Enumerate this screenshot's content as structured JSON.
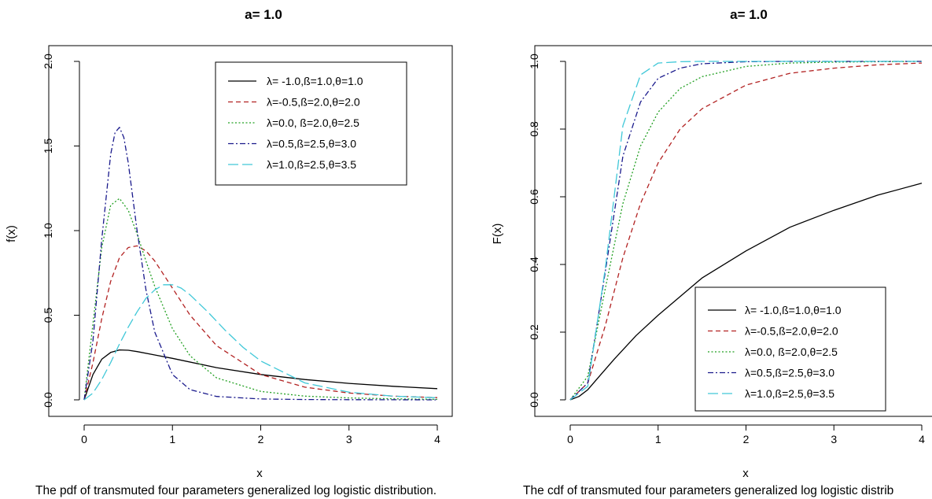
{
  "chart_data": [
    {
      "type": "line",
      "title": "a= 1.0",
      "xlabel": "x",
      "ylabel": "f(x)",
      "caption": "The pdf of transmuted four parameters generalized log logistic distribution.",
      "xlim": [
        0,
        4
      ],
      "ylim": [
        0,
        2.0
      ],
      "xticks": [
        "0",
        "1",
        "2",
        "3",
        "4"
      ],
      "yticks": [
        "0.0",
        "0.5",
        "1.0",
        "1.5",
        "2.0"
      ],
      "legend_position": "top-right",
      "grid": false,
      "series": [
        {
          "name": "λ= -1.0,ß=1.0,θ=1.0",
          "color": "#000000",
          "dash": "solid",
          "x": [
            0,
            0.1,
            0.2,
            0.3,
            0.4,
            0.5,
            0.6,
            0.8,
            1.0,
            1.5,
            2.0,
            2.5,
            3.0,
            3.5,
            4.0
          ],
          "y": [
            0,
            0.15,
            0.24,
            0.28,
            0.295,
            0.293,
            0.285,
            0.265,
            0.245,
            0.19,
            0.15,
            0.12,
            0.097,
            0.08,
            0.066
          ]
        },
        {
          "name": "λ=-0.5,ß=2.0,θ=2.0",
          "color": "#b22222",
          "dash": "dashed",
          "x": [
            0,
            0.1,
            0.2,
            0.3,
            0.4,
            0.5,
            0.6,
            0.7,
            0.8,
            1.0,
            1.2,
            1.5,
            2.0,
            2.5,
            3.0,
            3.5,
            4.0
          ],
          "y": [
            0,
            0.22,
            0.48,
            0.7,
            0.84,
            0.9,
            0.91,
            0.88,
            0.82,
            0.66,
            0.5,
            0.32,
            0.15,
            0.075,
            0.04,
            0.022,
            0.013
          ]
        },
        {
          "name": "λ=0.0, ß=2.0,θ=2.5",
          "color": "#22a022",
          "dash": "dotted",
          "x": [
            0,
            0.1,
            0.2,
            0.3,
            0.4,
            0.5,
            0.6,
            0.7,
            0.8,
            1.0,
            1.2,
            1.5,
            2.0,
            2.5,
            3.0,
            3.5,
            4.0
          ],
          "y": [
            0,
            0.45,
            0.9,
            1.15,
            1.19,
            1.12,
            0.98,
            0.82,
            0.67,
            0.42,
            0.26,
            0.13,
            0.05,
            0.022,
            0.011,
            0.006,
            0.003
          ]
        },
        {
          "name": "λ=0.5,ß=2.5,θ=3.0",
          "color": "#1a1a8c",
          "dash": "dashdot",
          "x": [
            0,
            0.1,
            0.2,
            0.3,
            0.35,
            0.4,
            0.45,
            0.5,
            0.6,
            0.7,
            0.8,
            1.0,
            1.2,
            1.5,
            2.0,
            2.5,
            3.0,
            4.0
          ],
          "y": [
            0,
            0.35,
            0.95,
            1.45,
            1.58,
            1.61,
            1.55,
            1.4,
            1.0,
            0.65,
            0.4,
            0.15,
            0.06,
            0.02,
            0.005,
            0.002,
            0.001,
            0
          ]
        },
        {
          "name": "λ=1.0,ß=2.5,θ=3.5",
          "color": "#40c8d8",
          "dash": "longdash",
          "x": [
            0,
            0.1,
            0.2,
            0.3,
            0.4,
            0.5,
            0.6,
            0.7,
            0.8,
            0.9,
            1.0,
            1.1,
            1.2,
            1.4,
            1.6,
            1.8,
            2.0,
            2.5,
            3.0,
            3.5,
            4.0
          ],
          "y": [
            0,
            0.04,
            0.12,
            0.22,
            0.33,
            0.43,
            0.52,
            0.6,
            0.65,
            0.68,
            0.68,
            0.66,
            0.62,
            0.52,
            0.41,
            0.31,
            0.23,
            0.1,
            0.045,
            0.022,
            0.012
          ]
        }
      ]
    },
    {
      "type": "line",
      "title": "a= 1.0",
      "xlabel": "x",
      "ylabel": "F(x)",
      "caption": "The cdf of transmuted four parameters generalized log logistic distrib",
      "xlim": [
        0,
        4
      ],
      "ylim": [
        0,
        1.0
      ],
      "xticks": [
        "0",
        "1",
        "2",
        "3",
        "4"
      ],
      "yticks": [
        "0.0",
        "0.2",
        "0.4",
        "0.6",
        "0.8",
        "1.0"
      ],
      "legend_position": "bottom-right",
      "grid": false,
      "series": [
        {
          "name": "λ= -1.0,ß=1.0,θ=1.0",
          "color": "#000000",
          "dash": "solid",
          "x": [
            0,
            0.1,
            0.2,
            0.3,
            0.5,
            0.75,
            1.0,
            1.5,
            2.0,
            2.5,
            3.0,
            3.5,
            4.0
          ],
          "y": [
            0,
            0.01,
            0.03,
            0.06,
            0.12,
            0.19,
            0.25,
            0.36,
            0.44,
            0.51,
            0.56,
            0.605,
            0.64
          ]
        },
        {
          "name": "λ=-0.5,ß=2.0,θ=2.0",
          "color": "#b22222",
          "dash": "dashed",
          "x": [
            0,
            0.2,
            0.4,
            0.6,
            0.8,
            1.0,
            1.25,
            1.5,
            2.0,
            2.5,
            3.0,
            3.5,
            4.0
          ],
          "y": [
            0,
            0.05,
            0.22,
            0.42,
            0.58,
            0.7,
            0.8,
            0.86,
            0.93,
            0.965,
            0.98,
            0.99,
            0.995
          ]
        },
        {
          "name": "λ=0.0, ß=2.0,θ=2.5",
          "color": "#22a022",
          "dash": "dotted",
          "x": [
            0,
            0.2,
            0.4,
            0.6,
            0.8,
            1.0,
            1.25,
            1.5,
            2.0,
            2.5,
            3.0,
            3.5,
            4.0
          ],
          "y": [
            0,
            0.07,
            0.33,
            0.58,
            0.75,
            0.85,
            0.92,
            0.955,
            0.985,
            0.995,
            0.998,
            0.999,
            1.0
          ]
        },
        {
          "name": "λ=0.5,ß=2.5,θ=3.0",
          "color": "#1a1a8c",
          "dash": "dashdot",
          "x": [
            0,
            0.2,
            0.4,
            0.6,
            0.8,
            1.0,
            1.25,
            1.5,
            2.0,
            2.5,
            3.0,
            4.0
          ],
          "y": [
            0,
            0.05,
            0.38,
            0.72,
            0.88,
            0.95,
            0.98,
            0.993,
            0.999,
            1.0,
            1.0,
            1.0
          ]
        },
        {
          "name": "λ=1.0,ß=2.5,θ=3.5",
          "color": "#40c8d8",
          "dash": "longdash",
          "x": [
            0,
            0.2,
            0.4,
            0.6,
            0.8,
            1.0,
            1.25,
            1.5,
            2.0,
            3.0,
            4.0
          ],
          "y": [
            0,
            0.04,
            0.39,
            0.81,
            0.96,
            0.995,
            0.999,
            1.0,
            1.0,
            1.0,
            1.0
          ]
        }
      ]
    }
  ]
}
